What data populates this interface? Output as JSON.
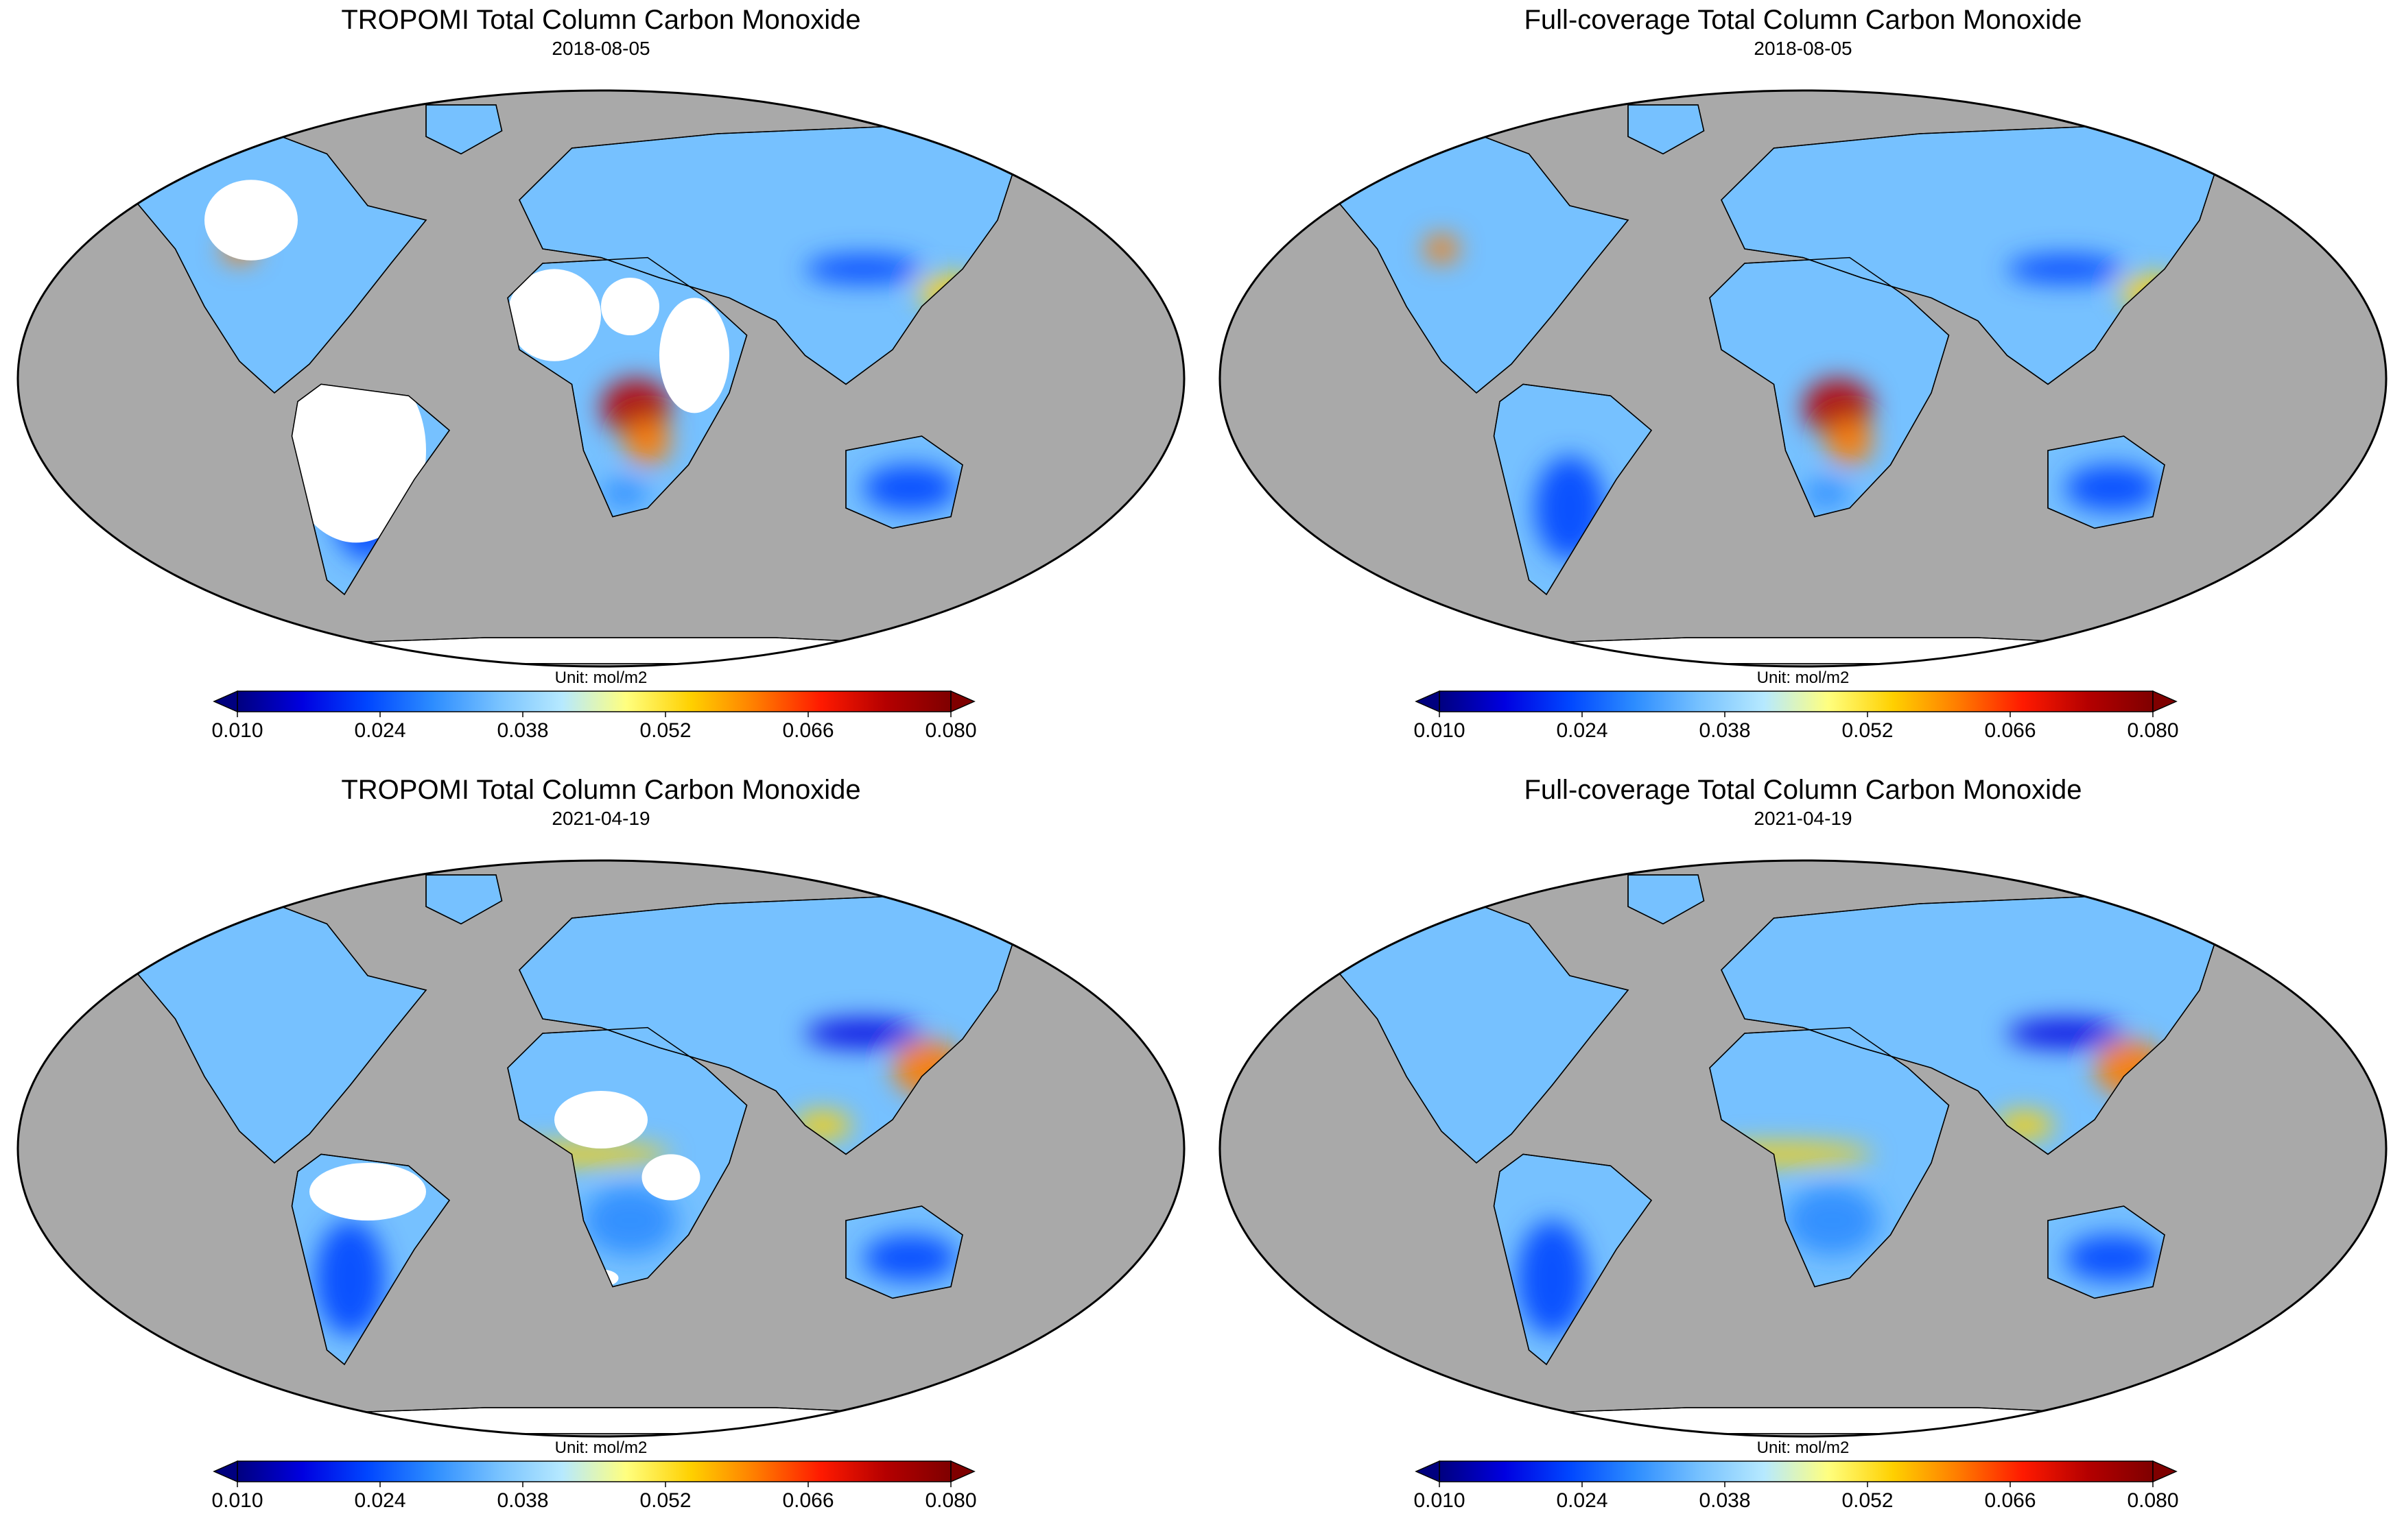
{
  "panels": [
    {
      "title": "TROPOMI Total Column Carbon Monoxide",
      "date": "2018-08-05",
      "unit": "Unit: mol/m2",
      "coverage": "tropomi",
      "season": "aug"
    },
    {
      "title": "Full-coverage Total Column Carbon Monoxide",
      "date": "2018-08-05",
      "unit": "Unit: mol/m2",
      "coverage": "full",
      "season": "aug"
    },
    {
      "title": "TROPOMI Total Column Carbon Monoxide",
      "date": "2021-04-19",
      "unit": "Unit: mol/m2",
      "coverage": "tropomi",
      "season": "apr"
    },
    {
      "title": "Full-coverage Total Column Carbon Monoxide",
      "date": "2021-04-19",
      "unit": "Unit: mol/m2",
      "coverage": "full",
      "season": "apr"
    }
  ],
  "colorbar": {
    "ticks": [
      "0.010",
      "0.024",
      "0.038",
      "0.052",
      "0.066",
      "0.080"
    ],
    "min": 0.01,
    "max": 0.08,
    "extend": "both",
    "colormap": [
      "#00007f",
      "#0000e0",
      "#0046ff",
      "#2c8cff",
      "#76c1ff",
      "#b6e9ff",
      "#ffff7f",
      "#ffd000",
      "#ff7c00",
      "#ff1a00",
      "#b40000",
      "#7f0000"
    ]
  },
  "colors": {
    "ocean": "#a9a9a9",
    "missing": "#ffffff",
    "coastline": "#000000",
    "antarctica": "#ffffff"
  }
}
